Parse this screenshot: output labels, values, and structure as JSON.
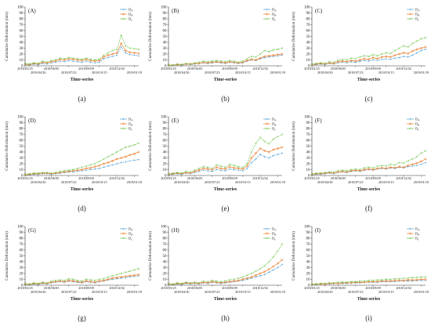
{
  "chart_data": {
    "type": "line",
    "common": {
      "x": [
        "2018/03/25",
        "2018/04/06",
        "2018/04/18",
        "2018/04/30",
        "2018/05/12",
        "2018/05/24",
        "2018/06/05",
        "2018/06/17",
        "2018/06/29",
        "2018/07/11",
        "2018/07/23",
        "2018/08/04",
        "2018/08/16",
        "2018/08/28",
        "2018/09/09",
        "2018/09/21",
        "2018/10/03",
        "2018/10/15",
        "2018/10/27",
        "2018/11/08",
        "2018/11/20",
        "2018/12/02",
        "2018/12/14",
        "2018/12/26",
        "2019/01/07",
        "2019/01/19",
        "2019/01/31"
      ],
      "xtick_labels": [
        "2018/03/25",
        "2018/04/30",
        "2018/06/05",
        "2018/07/23",
        "2018/09/09",
        "2018/10/15",
        "2018/12/02",
        "2019/01/19"
      ],
      "xlabel": "Time-series",
      "ylabel": "Cumulative Deformation (mm)",
      "ylim": [
        0,
        100
      ],
      "yticks": [
        0,
        10,
        20,
        30,
        40,
        50,
        60,
        70,
        80,
        90,
        100
      ],
      "legend_position": "top-right",
      "series_names": [
        "D_N",
        "D_B",
        "D_L"
      ],
      "series_colors": [
        "#4f9fd6",
        "#ee7f2d",
        "#6cc24a"
      ],
      "series_markers": [
        "+",
        "circle",
        "x"
      ]
    },
    "panels": [
      {
        "panel": "(A)",
        "caption": "(a)",
        "series": [
          {
            "name": "D_N",
            "values": [
              2,
              1,
              3,
              2,
              4,
              3,
              5,
              6,
              8,
              7,
              9,
              8,
              7,
              6,
              8,
              6,
              5,
              6,
              12,
              14,
              16,
              18,
              32,
              22,
              19,
              18,
              17
            ]
          },
          {
            "name": "D_B",
            "values": [
              3,
              2,
              4,
              3,
              6,
              5,
              7,
              8,
              11,
              10,
              12,
              11,
              10,
              9,
              11,
              9,
              8,
              9,
              15,
              18,
              20,
              22,
              38,
              26,
              23,
              22,
              21
            ]
          },
          {
            "name": "D_L",
            "values": [
              4,
              3,
              5,
              4,
              8,
              6,
              9,
              10,
              13,
              12,
              14,
              13,
              12,
              11,
              13,
              11,
              10,
              11,
              18,
              22,
              26,
              28,
              52,
              34,
              30,
              29,
              28
            ]
          }
        ]
      },
      {
        "panel": "(B)",
        "caption": "(b)",
        "series": [
          {
            "name": "D_N",
            "values": [
              1,
              0,
              2,
              1,
              3,
              2,
              3,
              4,
              5,
              4,
              5,
              6,
              5,
              4,
              6,
              5,
              4,
              5,
              8,
              10,
              9,
              12,
              14,
              15,
              16,
              17,
              18
            ]
          },
          {
            "name": "D_B",
            "values": [
              1,
              1,
              2,
              2,
              3,
              3,
              4,
              4,
              6,
              5,
              6,
              7,
              6,
              5,
              7,
              6,
              5,
              6,
              9,
              11,
              10,
              13,
              16,
              17,
              18,
              19,
              20
            ]
          },
          {
            "name": "D_L",
            "values": [
              2,
              1,
              3,
              2,
              4,
              3,
              5,
              6,
              8,
              7,
              8,
              9,
              8,
              7,
              9,
              8,
              6,
              8,
              12,
              16,
              15,
              20,
              26,
              24,
              27,
              28,
              30
            ]
          }
        ]
      },
      {
        "panel": "(C)",
        "caption": "(c)",
        "series": [
          {
            "name": "D_N",
            "values": [
              1,
              2,
              3,
              2,
              4,
              3,
              5,
              6,
              5,
              7,
              6,
              8,
              9,
              8,
              10,
              9,
              11,
              12,
              11,
              13,
              14,
              16,
              15,
              18,
              22,
              26,
              28
            ]
          },
          {
            "name": "D_B",
            "values": [
              2,
              3,
              4,
              3,
              5,
              4,
              7,
              8,
              7,
              9,
              8,
              10,
              12,
              11,
              14,
              12,
              15,
              16,
              15,
              18,
              20,
              22,
              21,
              25,
              28,
              30,
              32
            ]
          },
          {
            "name": "D_L",
            "values": [
              3,
              4,
              5,
              4,
              7,
              6,
              9,
              11,
              10,
              13,
              12,
              15,
              17,
              16,
              19,
              17,
              20,
              22,
              21,
              26,
              30,
              34,
              32,
              38,
              42,
              46,
              48
            ]
          }
        ]
      },
      {
        "panel": "(D)",
        "caption": "(d)",
        "series": [
          {
            "name": "D_N",
            "values": [
              1,
              1,
              2,
              2,
              3,
              3,
              2,
              3,
              4,
              5,
              6,
              6,
              7,
              8,
              9,
              10,
              11,
              12,
              14,
              16,
              18,
              20,
              22,
              23,
              25,
              26,
              27
            ]
          },
          {
            "name": "D_B",
            "values": [
              1,
              2,
              3,
              3,
              4,
              4,
              3,
              4,
              5,
              6,
              7,
              8,
              9,
              10,
              12,
              13,
              15,
              17,
              20,
              22,
              25,
              28,
              30,
              32,
              35,
              37,
              40
            ]
          },
          {
            "name": "D_L",
            "values": [
              2,
              3,
              4,
              4,
              5,
              5,
              4,
              5,
              7,
              8,
              9,
              10,
              12,
              14,
              16,
              18,
              20,
              24,
              28,
              32,
              36,
              40,
              44,
              48,
              50,
              52,
              55
            ]
          }
        ]
      },
      {
        "panel": "(E)",
        "caption": "(e)",
        "series": [
          {
            "name": "D_N",
            "values": [
              1,
              2,
              3,
              2,
              4,
              3,
              5,
              7,
              9,
              8,
              7,
              10,
              9,
              8,
              11,
              10,
              9,
              8,
              12,
              22,
              28,
              36,
              32,
              30,
              34,
              36,
              38
            ]
          },
          {
            "name": "D_B",
            "values": [
              2,
              3,
              4,
              3,
              5,
              4,
              7,
              9,
              12,
              11,
              10,
              14,
              12,
              11,
              15,
              13,
              12,
              11,
              16,
              30,
              38,
              46,
              42,
              40,
              44,
              46,
              48
            ]
          },
          {
            "name": "D_L",
            "values": [
              3,
              4,
              5,
              4,
              7,
              6,
              9,
              12,
              15,
              14,
              12,
              18,
              16,
              14,
              19,
              17,
              15,
              14,
              20,
              40,
              55,
              65,
              58,
              54,
              62,
              66,
              70
            ]
          }
        ]
      },
      {
        "panel": "(F)",
        "caption": "(f)",
        "series": [
          {
            "name": "D_N",
            "values": [
              1,
              2,
              2,
              3,
              4,
              3,
              5,
              6,
              5,
              7,
              8,
              7,
              9,
              10,
              9,
              11,
              12,
              11,
              13,
              12,
              14,
              13,
              15,
              16,
              17,
              19,
              22
            ]
          },
          {
            "name": "D_B",
            "values": [
              2,
              3,
              3,
              4,
              5,
              4,
              6,
              7,
              6,
              8,
              9,
              8,
              10,
              11,
              10,
              12,
              13,
              12,
              14,
              13,
              15,
              14,
              17,
              19,
              21,
              24,
              28
            ]
          },
          {
            "name": "D_L",
            "values": [
              3,
              4,
              4,
              5,
              6,
              6,
              8,
              9,
              8,
              10,
              11,
              10,
              13,
              14,
              13,
              16,
              17,
              16,
              19,
              18,
              22,
              21,
              25,
              28,
              32,
              38,
              42
            ]
          }
        ]
      },
      {
        "panel": "(G)",
        "caption": "(g)",
        "series": [
          {
            "name": "D_N",
            "values": [
              1,
              0,
              2,
              1,
              3,
              2,
              4,
              5,
              6,
              5,
              7,
              6,
              5,
              4,
              6,
              5,
              4,
              6,
              7,
              9,
              10,
              11,
              12,
              13,
              14,
              15,
              16
            ]
          },
          {
            "name": "D_B",
            "values": [
              2,
              1,
              3,
              2,
              4,
              3,
              5,
              6,
              7,
              6,
              8,
              7,
              6,
              5,
              7,
              6,
              5,
              7,
              8,
              10,
              12,
              13,
              14,
              15,
              16,
              17,
              18
            ]
          },
          {
            "name": "D_L",
            "values": [
              3,
              2,
              4,
              3,
              5,
              4,
              7,
              8,
              9,
              8,
              11,
              10,
              8,
              7,
              10,
              9,
              8,
              10,
              11,
              14,
              16,
              18,
              20,
              22,
              24,
              26,
              28
            ]
          }
        ]
      },
      {
        "panel": "(H)",
        "caption": "(h)",
        "series": [
          {
            "name": "D_N",
            "values": [
              1,
              0,
              2,
              1,
              3,
              2,
              3,
              2,
              4,
              3,
              5,
              4,
              3,
              4,
              5,
              6,
              7,
              8,
              10,
              12,
              14,
              16,
              18,
              22,
              26,
              30,
              35
            ]
          },
          {
            "name": "D_B",
            "values": [
              2,
              1,
              3,
              2,
              4,
              3,
              4,
              3,
              5,
              4,
              6,
              5,
              4,
              5,
              6,
              7,
              8,
              10,
              12,
              14,
              17,
              20,
              23,
              27,
              32,
              37,
              43
            ]
          },
          {
            "name": "D_L",
            "values": [
              3,
              2,
              4,
              3,
              5,
              4,
              5,
              4,
              7,
              6,
              8,
              7,
              6,
              7,
              9,
              10,
              12,
              14,
              17,
              20,
              24,
              28,
              33,
              40,
              48,
              58,
              70
            ]
          }
        ]
      },
      {
        "panel": "(I)",
        "caption": "(i)",
        "series": [
          {
            "name": "D_N",
            "values": [
              1,
              1,
              2,
              2,
              2,
              3,
              3,
              3,
              3,
              4,
              4,
              4,
              5,
              5,
              5,
              5,
              6,
              6,
              6,
              6,
              7,
              7,
              7,
              7,
              8,
              8,
              8
            ]
          },
          {
            "name": "D_B",
            "values": [
              1,
              2,
              2,
              2,
              3,
              3,
              3,
              4,
              4,
              4,
              5,
              5,
              5,
              6,
              6,
              6,
              7,
              7,
              7,
              8,
              8,
              8,
              9,
              9,
              9,
              10,
              10
            ]
          },
          {
            "name": "D_L",
            "values": [
              2,
              2,
              3,
              3,
              4,
              4,
              5,
              5,
              5,
              6,
              6,
              7,
              7,
              8,
              8,
              9,
              9,
              10,
              10,
              11,
              11,
              12,
              12,
              13,
              13,
              14,
              14
            ]
          }
        ]
      }
    ]
  }
}
